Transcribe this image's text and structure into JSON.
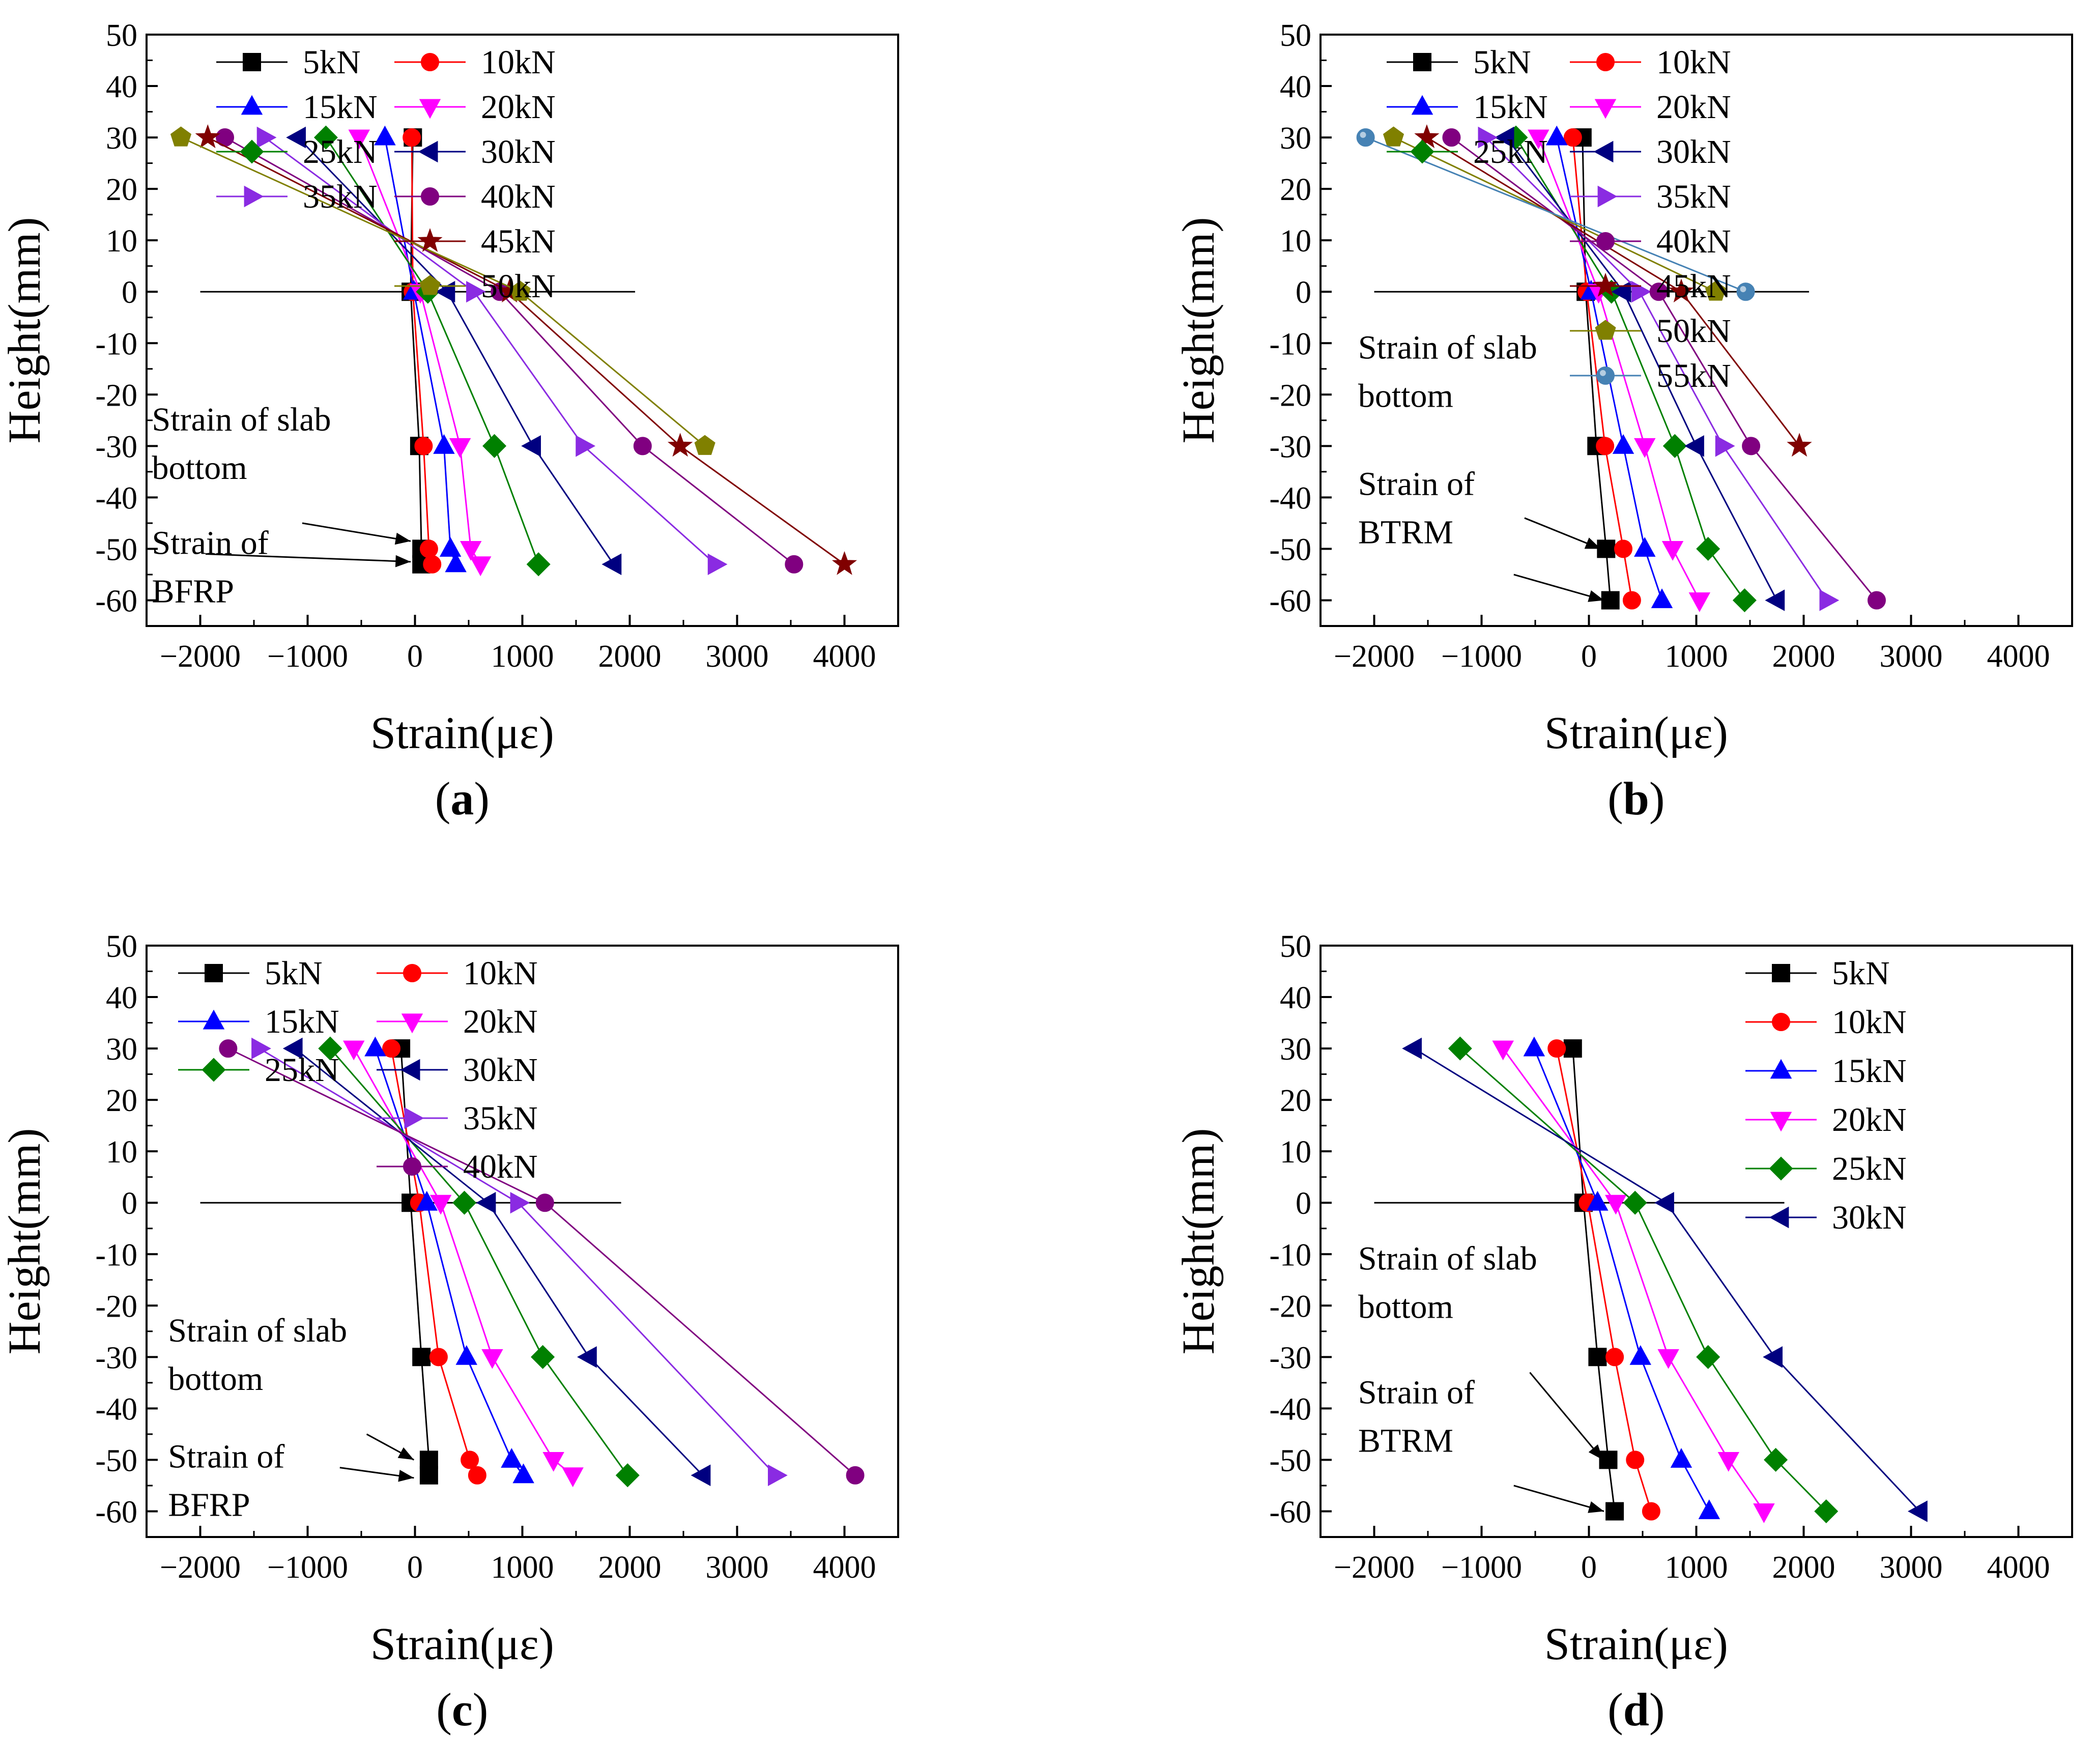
{
  "chart_data": [
    {
      "type": "line",
      "panel_label": "(a)",
      "panel_letter": "a",
      "xlabel": "Strain(με)",
      "ylabel": "Height(mm)",
      "xlim": [
        -2500,
        4500
      ],
      "ylim": [
        -65,
        50
      ],
      "xticks": [
        -2000,
        -1000,
        0,
        1000,
        2000,
        3000,
        4000
      ],
      "yticks": [
        50,
        40,
        30,
        20,
        10,
        0,
        -10,
        -20,
        -30,
        -40,
        -50,
        -60
      ],
      "legend_columns": 2,
      "legend_slots": [
        [
          0,
          1
        ],
        [
          2,
          3
        ],
        [
          4,
          5
        ],
        [
          6,
          7
        ],
        [
          null,
          8
        ],
        [
          null,
          9
        ]
      ],
      "neutral_line": {
        "y": 0,
        "x_from": -2000,
        "x_to": 2050
      },
      "annotations": [
        {
          "lines": [
            "Strain of slab",
            "bottom"
          ],
          "text_x": -2450,
          "text_y": -27,
          "arrow_from": [
            -1050,
            -45
          ],
          "arrow_to": [
            -40,
            -48.5
          ]
        },
        {
          "lines": [
            "Strain of",
            "BFRP"
          ],
          "text_x": -2450,
          "text_y": -51,
          "arrow_from": [
            -1950,
            -51
          ],
          "arrow_to": [
            -40,
            -52.5
          ]
        }
      ],
      "series": [
        {
          "name": "5kN",
          "color": "#000000",
          "marker": "square",
          "x": [
            -20,
            -40,
            40,
            60,
            60
          ],
          "y": [
            30,
            0,
            -30,
            -50,
            -53
          ]
        },
        {
          "name": "10kN",
          "color": "#ff0000",
          "marker": "circle",
          "x": [
            -30,
            -20,
            80,
            130,
            160
          ],
          "y": [
            30,
            0,
            -30,
            -50,
            -53
          ]
        },
        {
          "name": "15kN",
          "color": "#0000ff",
          "marker": "triangle-up",
          "x": [
            -280,
            -10,
            270,
            330,
            380
          ],
          "y": [
            30,
            0,
            -30,
            -50,
            -53
          ]
        },
        {
          "name": "20kN",
          "color": "#ff00ff",
          "marker": "triangle-down",
          "x": [
            -520,
            50,
            420,
            520,
            610
          ],
          "y": [
            30,
            0,
            -30,
            -50,
            -53
          ]
        },
        {
          "name": "25kN",
          "color": "#008000",
          "marker": "diamond",
          "x": [
            -830,
            120,
            740,
            0,
            1150
          ],
          "y": [
            30,
            0,
            -30,
            null,
            -53
          ]
        },
        {
          "name": "30kN",
          "color": "#000080",
          "marker": "triangle-left",
          "x": [
            -1090,
            300,
            1100,
            0,
            1850
          ],
          "y": [
            30,
            0,
            -30,
            null,
            -53
          ]
        },
        {
          "name": "35kN",
          "color": "#8a2be2",
          "marker": "triangle-right",
          "x": [
            -1400,
            550,
            1570,
            0,
            2800
          ],
          "y": [
            30,
            0,
            -30,
            null,
            -53
          ]
        },
        {
          "name": "40kN",
          "color": "#800080",
          "marker": "circle",
          "x": [
            -1770,
            790,
            2120,
            0,
            3530
          ],
          "y": [
            30,
            0,
            -30,
            null,
            -53
          ]
        },
        {
          "name": "45kN",
          "color": "#800000",
          "marker": "star",
          "x": [
            -1930,
            880,
            2470,
            0,
            4000
          ],
          "y": [
            30,
            0,
            -30,
            null,
            -53
          ]
        },
        {
          "name": "50kN",
          "color": "#808000",
          "marker": "pentagon",
          "x": [
            -2180,
            980,
            2700
          ],
          "y": [
            30,
            0,
            -30
          ]
        }
      ]
    },
    {
      "type": "line",
      "panel_label": "(b)",
      "panel_letter": "b",
      "xlabel": "Strain(με)",
      "ylabel": "Height(mm)",
      "xlim": [
        -2500,
        4500
      ],
      "ylim": [
        -65,
        50
      ],
      "xticks": [
        -2000,
        -1000,
        0,
        1000,
        2000,
        3000,
        4000
      ],
      "yticks": [
        50,
        40,
        30,
        20,
        10,
        0,
        -10,
        -20,
        -30,
        -40,
        -50,
        -60
      ],
      "legend_columns": 2,
      "legend_slots": [
        [
          0,
          1
        ],
        [
          2,
          3
        ],
        [
          4,
          5
        ],
        [
          null,
          6
        ],
        [
          null,
          7
        ],
        [
          null,
          8
        ],
        [
          null,
          9
        ],
        [
          null,
          10
        ]
      ],
      "neutral_line": {
        "y": 0,
        "x_from": -2000,
        "x_to": 2050
      },
      "annotations": [
        {
          "lines": [
            "Strain of slab",
            "bottom"
          ],
          "text_x": -2150,
          "text_y": -13,
          "arrow_from": [
            -600,
            -44
          ],
          "arrow_to": [
            110,
            -50
          ]
        },
        {
          "lines": [
            "Strain of",
            "BTRM"
          ],
          "text_x": -2150,
          "text_y": -39.5,
          "arrow_from": [
            -700,
            -55
          ],
          "arrow_to": [
            140,
            -60
          ]
        }
      ],
      "series": [
        {
          "name": "5kN",
          "color": "#000000",
          "marker": "square",
          "x": [
            -60,
            -30,
            70,
            160,
            200
          ],
          "y": [
            30,
            0,
            -30,
            -50,
            -60
          ]
        },
        {
          "name": "10kN",
          "color": "#ff0000",
          "marker": "circle",
          "x": [
            -150,
            -20,
            150,
            320,
            400
          ],
          "y": [
            30,
            0,
            -30,
            -50,
            -60
          ]
        },
        {
          "name": "15kN",
          "color": "#0000ff",
          "marker": "triangle-up",
          "x": [
            -300,
            20,
            320,
            520,
            680
          ],
          "y": [
            30,
            0,
            -30,
            -50,
            -60
          ]
        },
        {
          "name": "20kN",
          "color": "#ff00ff",
          "marker": "triangle-down",
          "x": [
            -470,
            90,
            520,
            780,
            1030
          ],
          "y": [
            30,
            0,
            -30,
            -50,
            -60
          ]
        },
        {
          "name": "25kN",
          "color": "#008000",
          "marker": "diamond",
          "x": [
            -680,
            210,
            800,
            1110,
            1450
          ],
          "y": [
            30,
            0,
            -30,
            -50,
            -60
          ]
        },
        {
          "name": "30kN",
          "color": "#000080",
          "marker": "triangle-left",
          "x": [
            -770,
            320,
            1000,
            0,
            1750
          ],
          "y": [
            30,
            0,
            -30,
            null,
            -60
          ]
        },
        {
          "name": "35kN",
          "color": "#8a2be2",
          "marker": "triangle-right",
          "x": [
            -960,
            470,
            1250,
            0,
            2220
          ],
          "y": [
            30,
            0,
            -30,
            null,
            -60
          ]
        },
        {
          "name": "40kN",
          "color": "#800080",
          "marker": "circle",
          "x": [
            -1280,
            650,
            1510,
            0,
            2680
          ],
          "y": [
            30,
            0,
            -30,
            null,
            -60
          ]
        },
        {
          "name": "45kN",
          "color": "#800000",
          "marker": "star",
          "x": [
            -1510,
            860,
            1960
          ],
          "y": [
            30,
            0,
            -30
          ]
        },
        {
          "name": "50kN",
          "color": "#808000",
          "marker": "pentagon",
          "x": [
            -1820,
            1180
          ],
          "y": [
            30,
            0
          ]
        },
        {
          "name": "55kN",
          "color": "#4682b4",
          "marker": "sphere",
          "x": [
            -2080,
            1460
          ],
          "y": [
            30,
            0
          ]
        }
      ]
    },
    {
      "type": "line",
      "panel_label": "(c)",
      "panel_letter": "c",
      "xlabel": "Strain(με)",
      "ylabel": "Height(mm)",
      "xlim": [
        -2500,
        4500
      ],
      "ylim": [
        -65,
        50
      ],
      "xticks": [
        -2000,
        -1000,
        0,
        1000,
        2000,
        3000,
        4000
      ],
      "yticks": [
        50,
        40,
        30,
        20,
        10,
        0,
        -10,
        -20,
        -30,
        -40,
        -50,
        -60
      ],
      "legend_columns": 2,
      "legend_slots": [
        [
          0,
          1
        ],
        [
          2,
          3
        ],
        [
          4,
          5
        ],
        [
          null,
          6
        ],
        [
          null,
          7
        ]
      ],
      "neutral_line": {
        "y": 0,
        "x_from": -2000,
        "x_to": 1920
      },
      "annotations": [
        {
          "lines": [
            "Strain of slab",
            "bottom"
          ],
          "text_x": -2300,
          "text_y": -27,
          "arrow_from": [
            -450,
            -45
          ],
          "arrow_to": [
            -10,
            -50
          ]
        },
        {
          "lines": [
            "Strain of",
            "BFRP"
          ],
          "text_x": -2300,
          "text_y": -51.5,
          "arrow_from": [
            -700,
            -51.5
          ],
          "arrow_to": [
            -10,
            -53.5
          ]
        }
      ],
      "series": [
        {
          "name": "5kN",
          "color": "#000000",
          "marker": "square",
          "x": [
            -130,
            -40,
            60,
            130,
            130
          ],
          "y": [
            30,
            0,
            -30,
            -50,
            -53
          ]
        },
        {
          "name": "10kN",
          "color": "#ff0000",
          "marker": "circle",
          "x": [
            -220,
            40,
            220,
            510,
            580
          ],
          "y": [
            30,
            0,
            -30,
            -50,
            -53
          ]
        },
        {
          "name": "15kN",
          "color": "#0000ff",
          "marker": "triangle-up",
          "x": [
            -370,
            110,
            480,
            900,
            1010
          ],
          "y": [
            30,
            0,
            -30,
            -50,
            -53
          ]
        },
        {
          "name": "20kN",
          "color": "#ff00ff",
          "marker": "triangle-down",
          "x": [
            -570,
            240,
            720,
            1290,
            1470
          ],
          "y": [
            30,
            0,
            -30,
            -50,
            -53
          ]
        },
        {
          "name": "25kN",
          "color": "#008000",
          "marker": "diamond",
          "x": [
            -790,
            460,
            1190,
            0,
            1980
          ],
          "y": [
            30,
            0,
            -30,
            null,
            -53
          ]
        },
        {
          "name": "30kN",
          "color": "#000080",
          "marker": "triangle-left",
          "x": [
            -1120,
            680,
            1620,
            0,
            2680
          ],
          "y": [
            30,
            0,
            -30,
            null,
            -53
          ]
        },
        {
          "name": "35kN",
          "color": "#8a2be2",
          "marker": "triangle-right",
          "x": [
            -1450,
            960,
            0,
            0,
            3360
          ],
          "y": [
            30,
            0,
            null,
            null,
            -53
          ]
        },
        {
          "name": "40kN",
          "color": "#800080",
          "marker": "circle",
          "x": [
            -1740,
            1210,
            0,
            0,
            4100
          ],
          "y": [
            30,
            0,
            null,
            null,
            -53
          ]
        }
      ]
    },
    {
      "type": "line",
      "panel_label": "(d)",
      "panel_letter": "d",
      "xlabel": "Strain(με)",
      "ylabel": "Height(mm)",
      "xlim": [
        -2500,
        4500
      ],
      "ylim": [
        -65,
        50
      ],
      "xticks": [
        -2000,
        -1000,
        0,
        1000,
        2000,
        3000,
        4000
      ],
      "yticks": [
        50,
        40,
        30,
        20,
        10,
        0,
        -10,
        -20,
        -30,
        -40,
        -50,
        -60
      ],
      "legend_columns": 1,
      "legend_slots": [
        [
          0
        ],
        [
          1
        ],
        [
          2
        ],
        [
          3
        ],
        [
          4
        ],
        [
          5
        ]
      ],
      "neutral_line": {
        "y": 0,
        "x_from": -2000,
        "x_to": 1820
      },
      "annotations": [
        {
          "lines": [
            "Strain of slab",
            "bottom"
          ],
          "text_x": -2150,
          "text_y": -13,
          "arrow_from": [
            -550,
            -33
          ],
          "arrow_to": [
            130,
            -50
          ]
        },
        {
          "lines": [
            "Strain of",
            "BTRM"
          ],
          "text_x": -2150,
          "text_y": -39,
          "arrow_from": [
            -700,
            -55
          ],
          "arrow_to": [
            140,
            -60
          ]
        }
      ],
      "series": [
        {
          "name": "5kN",
          "color": "#000000",
          "marker": "square",
          "x": [
            -150,
            -50,
            80,
            180,
            240
          ],
          "y": [
            30,
            0,
            -30,
            -50,
            -60
          ]
        },
        {
          "name": "10kN",
          "color": "#ff0000",
          "marker": "circle",
          "x": [
            -300,
            -10,
            240,
            430,
            580
          ],
          "y": [
            30,
            0,
            -30,
            -50,
            -60
          ]
        },
        {
          "name": "15kN",
          "color": "#0000ff",
          "marker": "triangle-up",
          "x": [
            -510,
            80,
            480,
            860,
            1120
          ],
          "y": [
            30,
            0,
            -30,
            -50,
            -60
          ]
        },
        {
          "name": "20kN",
          "color": "#ff00ff",
          "marker": "triangle-down",
          "x": [
            -800,
            250,
            740,
            1300,
            1630
          ],
          "y": [
            30,
            0,
            -30,
            -50,
            -60
          ]
        },
        {
          "name": "25kN",
          "color": "#008000",
          "marker": "diamond",
          "x": [
            -1200,
            430,
            1110,
            1740,
            2210
          ],
          "y": [
            30,
            0,
            -30,
            -50,
            -60
          ]
        },
        {
          "name": "30kN",
          "color": "#000080",
          "marker": "triangle-left",
          "x": [
            -1630,
            720,
            1730,
            0,
            3080
          ],
          "y": [
            30,
            0,
            -30,
            null,
            -60
          ]
        }
      ]
    }
  ]
}
